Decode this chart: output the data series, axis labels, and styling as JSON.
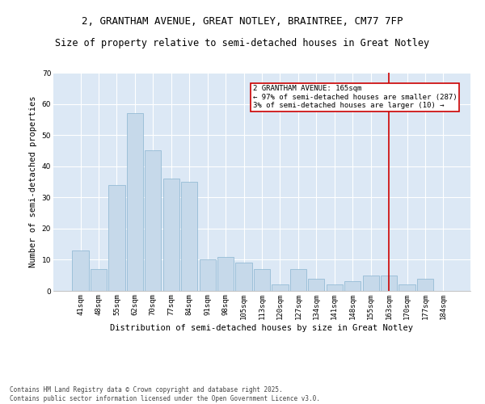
{
  "title_line1": "2, GRANTHAM AVENUE, GREAT NOTLEY, BRAINTREE, CM77 7FP",
  "title_line2": "Size of property relative to semi-detached houses in Great Notley",
  "categories": [
    "41sqm",
    "48sqm",
    "55sqm",
    "62sqm",
    "70sqm",
    "77sqm",
    "84sqm",
    "91sqm",
    "98sqm",
    "105sqm",
    "113sqm",
    "120sqm",
    "127sqm",
    "134sqm",
    "141sqm",
    "148sqm",
    "155sqm",
    "163sqm",
    "170sqm",
    "177sqm",
    "184sqm"
  ],
  "values": [
    13,
    7,
    34,
    57,
    45,
    36,
    35,
    10,
    11,
    9,
    7,
    2,
    7,
    4,
    2,
    3,
    5,
    5,
    2,
    4,
    0
  ],
  "bar_color": "#c6d9ea",
  "bar_edge_color": "#89b4d0",
  "annotation_line1": "2 GRANTHAM AVENUE: 165sqm",
  "annotation_line2": "← 97% of semi-detached houses are smaller (287)",
  "annotation_line3": "3% of semi-detached houses are larger (10) →",
  "xlabel": "Distribution of semi-detached houses by size in Great Notley",
  "ylabel": "Number of semi-detached properties",
  "ylim": [
    0,
    70
  ],
  "yticks": [
    0,
    10,
    20,
    30,
    40,
    50,
    60,
    70
  ],
  "marker_line_color": "#cc0000",
  "annotation_box_edge_color": "#cc0000",
  "background_color": "#dce8f5",
  "footer_line1": "Contains HM Land Registry data © Crown copyright and database right 2025.",
  "footer_line2": "Contains public sector information licensed under the Open Government Licence v3.0.",
  "title_fontsize": 9,
  "subtitle_fontsize": 8.5,
  "axis_label_fontsize": 7.5,
  "tick_fontsize": 6.5,
  "annotation_fontsize": 6.5,
  "footer_fontsize": 5.5,
  "marker_idx": 17
}
